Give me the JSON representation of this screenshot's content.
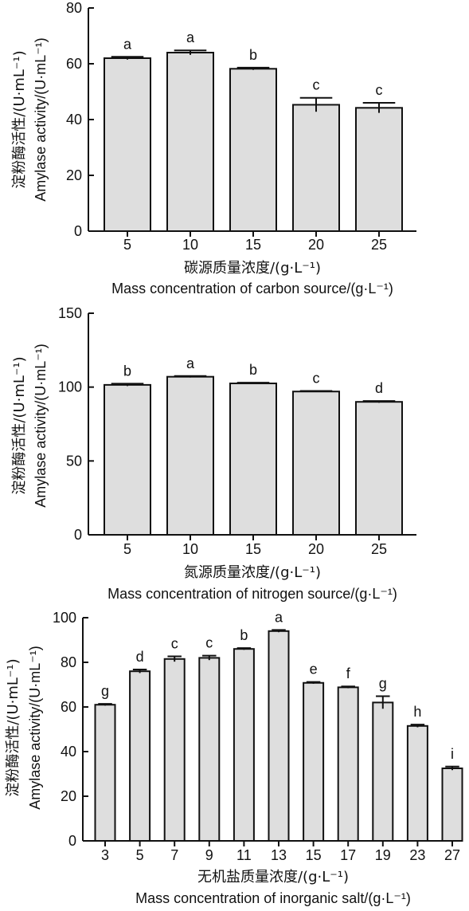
{
  "chart_data": [
    {
      "type": "bar",
      "xlabel_cn": "碳源质量浓度/(g·L⁻¹)",
      "xlabel_en": "Mass concentration of carbon source/(g·L⁻¹)",
      "ylabel_cn": "淀粉酶活性/(U·mL⁻¹)",
      "ylabel_en": "Amylase activity/(U·mL⁻¹)",
      "categories": [
        "5",
        "10",
        "15",
        "20",
        "25"
      ],
      "values": [
        62,
        64,
        58.2,
        45.3,
        44.2
      ],
      "errors": [
        0.5,
        0.8,
        0.4,
        2.5,
        1.8
      ],
      "labels": [
        "a",
        "a",
        "b",
        "c",
        "c"
      ],
      "ylim": [
        0,
        80
      ],
      "yticks": [
        "0",
        "20",
        "40",
        "60",
        "80"
      ],
      "grid": false
    },
    {
      "type": "bar",
      "xlabel_cn": "氮源质量浓度/(g·L⁻¹)",
      "xlabel_en": "Mass concentration of nitrogen source/(g·L⁻¹)",
      "ylabel_cn": "淀粉酶活性/(U·mL⁻¹)",
      "ylabel_en": "Amylase activity/(U·mL⁻¹)",
      "categories": [
        "5",
        "10",
        "15",
        "20",
        "25"
      ],
      "values": [
        101.5,
        107,
        102.5,
        97,
        90
      ],
      "errors": [
        0.8,
        0.5,
        0.5,
        0.4,
        0.6
      ],
      "labels": [
        "b",
        "a",
        "b",
        "c",
        "d"
      ],
      "ylim": [
        0,
        150
      ],
      "yticks": [
        "0",
        "50",
        "100",
        "150"
      ],
      "grid": false
    },
    {
      "type": "bar",
      "xlabel_cn": "无机盐质量浓度/(g·L⁻¹)",
      "xlabel_en": "Mass concentration of inorganic salt/(g·L⁻¹)",
      "ylabel_cn": "淀粉酶活性/(U·mL⁻¹)",
      "ylabel_en": "Amylase activity/(U·mL⁻¹)",
      "categories": [
        "3",
        "5",
        "7",
        "9",
        "11",
        "13",
        "15",
        "17",
        "19",
        "23",
        "27"
      ],
      "values": [
        61,
        76,
        81.5,
        82,
        86,
        94,
        70.8,
        68.8,
        62,
        51.5,
        32.5
      ],
      "errors": [
        0.4,
        0.8,
        1.2,
        1.0,
        0.4,
        0.5,
        0.4,
        0.4,
        2.8,
        0.6,
        0.8
      ],
      "labels": [
        "g",
        "d",
        "c",
        "c",
        "b",
        "a",
        "e",
        "f",
        "g",
        "h",
        "i"
      ],
      "ylim": [
        0,
        100
      ],
      "yticks": [
        "0",
        "20",
        "40",
        "60",
        "80",
        "100"
      ],
      "grid": false
    }
  ]
}
